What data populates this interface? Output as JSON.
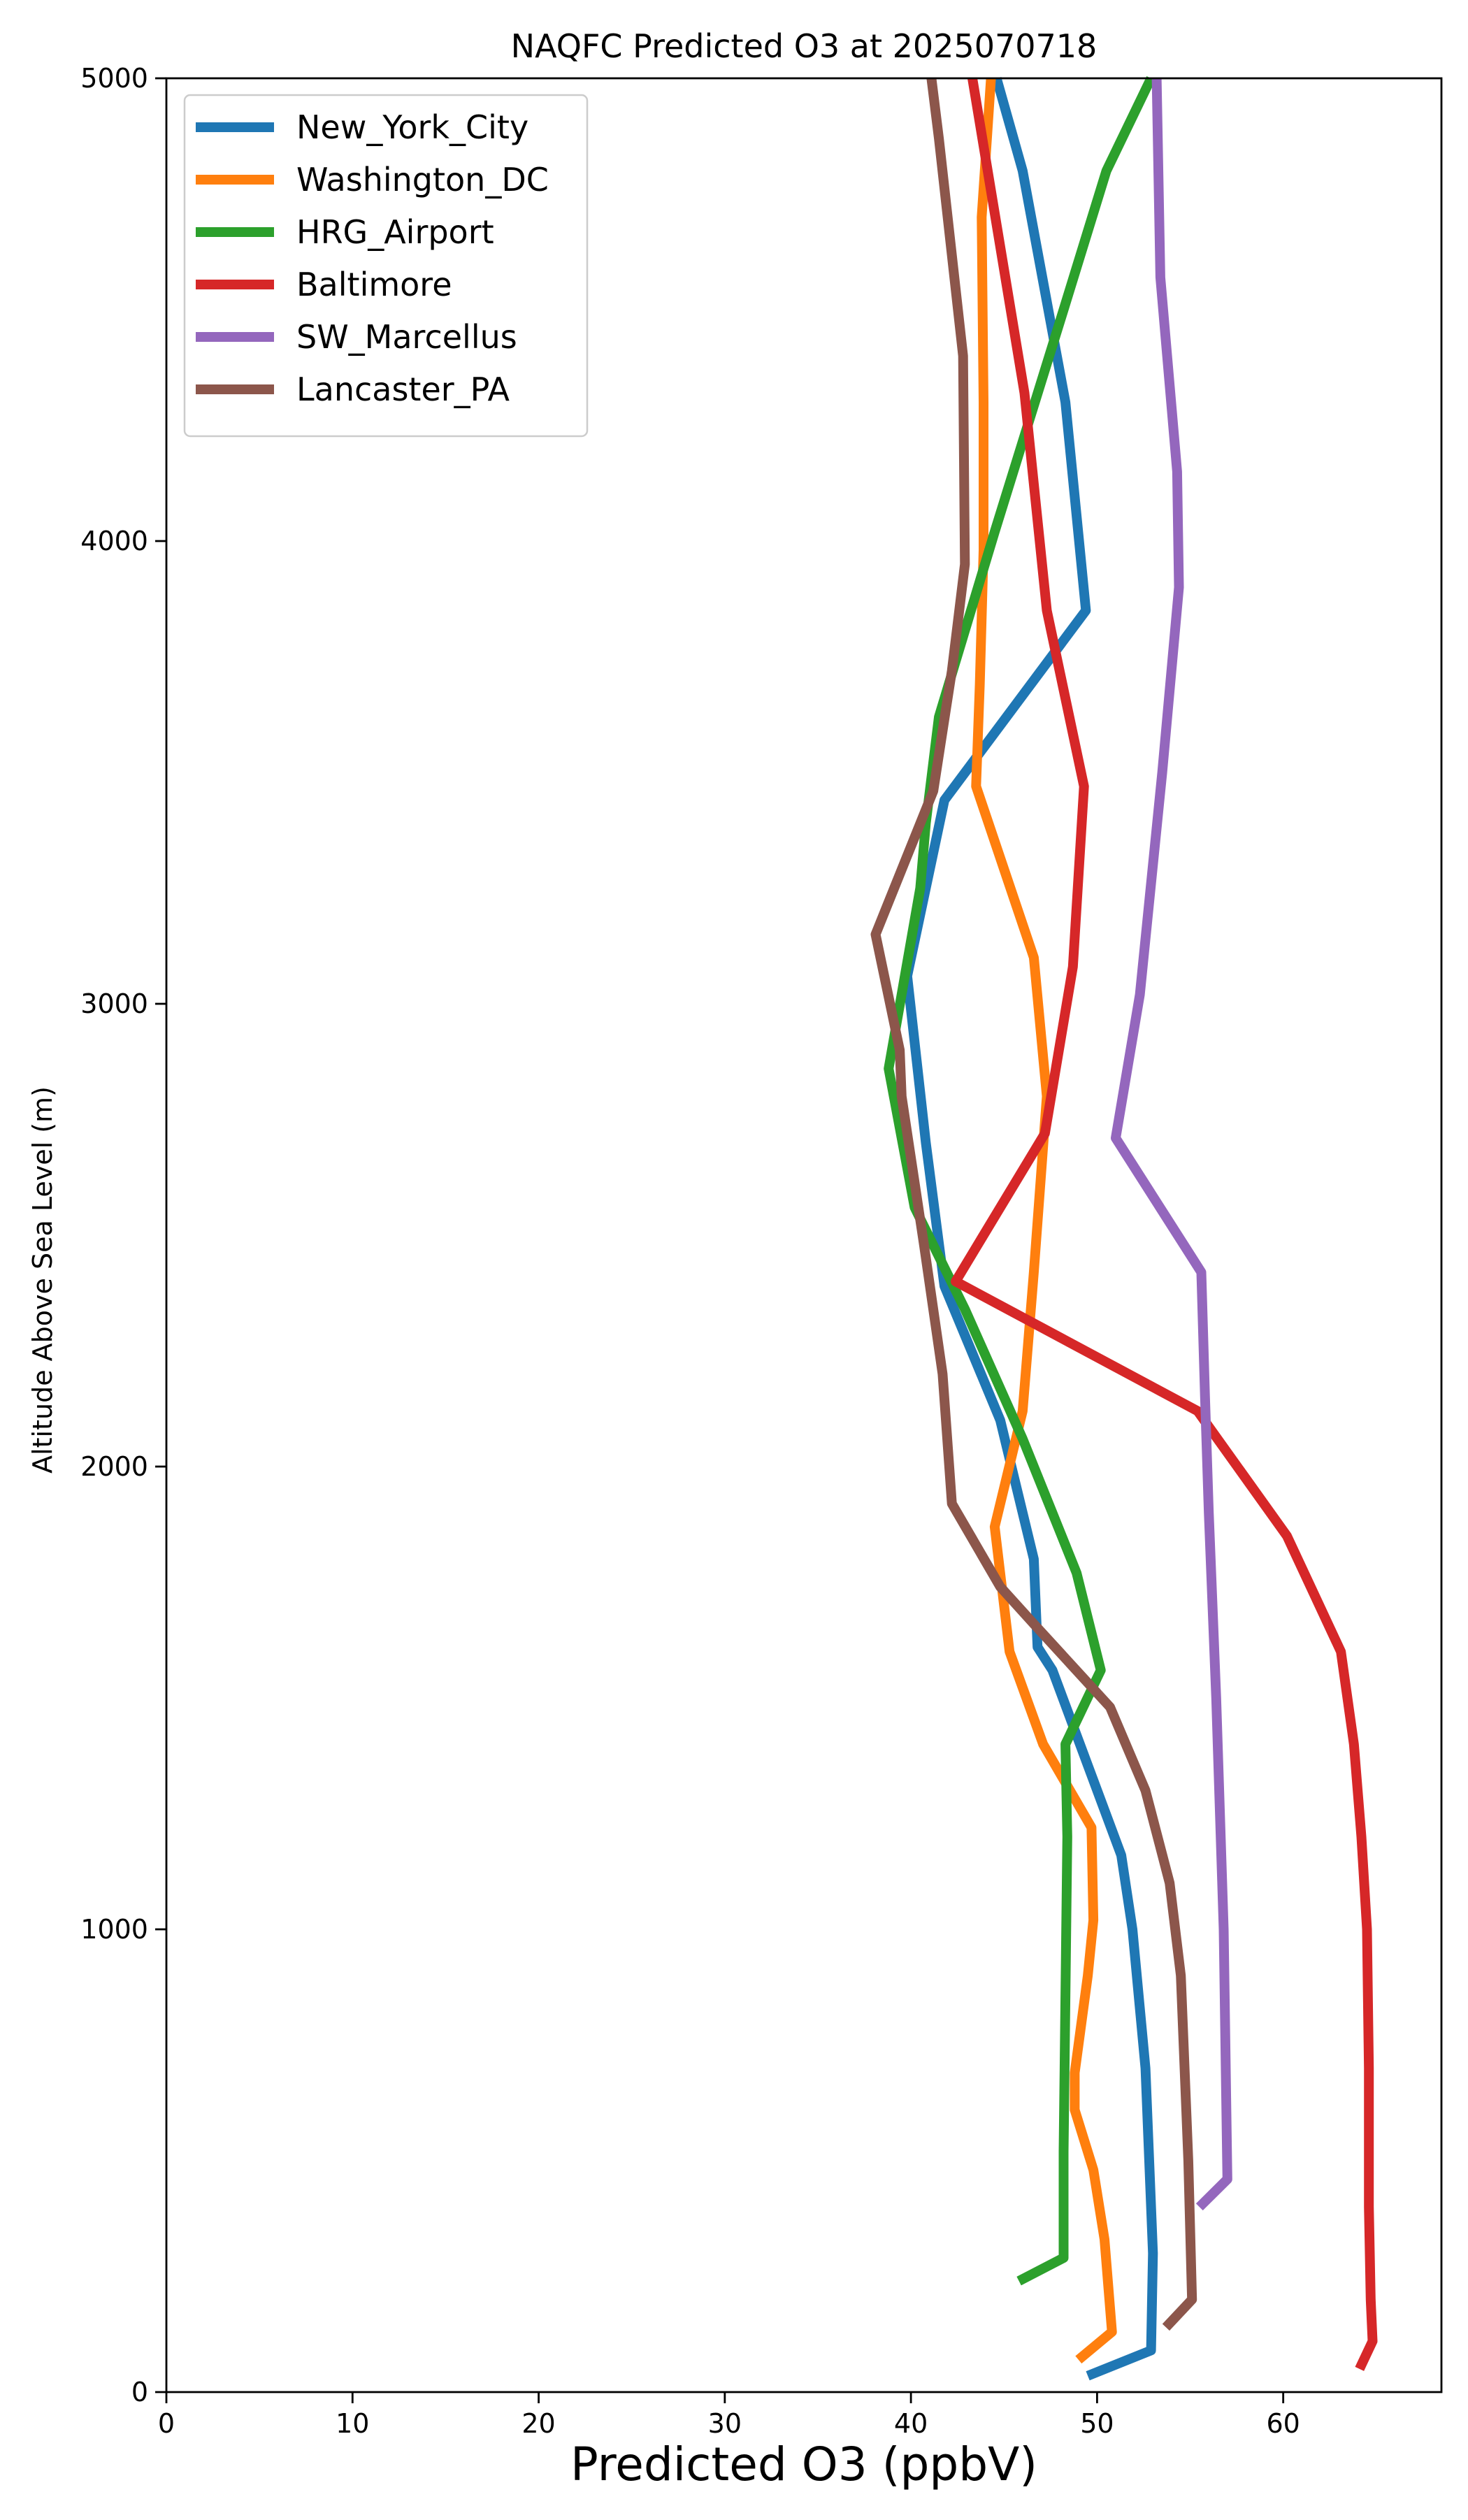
{
  "chart_data": {
    "type": "line",
    "title": "NAQFC Predicted O3 at 2025070718",
    "xlabel": "Predicted O3 (ppbV)",
    "ylabel": "Altitude Above Sea Level (m)",
    "xlim": [
      0,
      68.5
    ],
    "ylim": [
      0,
      5000
    ],
    "xticks": [
      0,
      10,
      20,
      30,
      40,
      50,
      60
    ],
    "yticks": [
      0,
      1000,
      2000,
      3000,
      4000,
      5000
    ],
    "grid": false,
    "legend_position": "upper-left",
    "series": [
      {
        "name": "New_York_City",
        "color": "#1f77b4",
        "points": [
          [
            49.5,
            35
          ],
          [
            52.9,
            90
          ],
          [
            53.0,
            300
          ],
          [
            52.6,
            700
          ],
          [
            51.9,
            1000
          ],
          [
            51.3,
            1160
          ],
          [
            47.6,
            1560
          ],
          [
            46.8,
            1610
          ],
          [
            46.6,
            1800
          ],
          [
            44.8,
            2100
          ],
          [
            41.8,
            2390
          ],
          [
            40.8,
            2700
          ],
          [
            39.8,
            3060
          ],
          [
            41.8,
            3440
          ],
          [
            49.4,
            3850
          ],
          [
            48.3,
            4300
          ],
          [
            46.0,
            4800
          ],
          [
            44.6,
            5000
          ]
        ]
      },
      {
        "name": "Washington_DC",
        "color": "#ff7f0e",
        "points": [
          [
            49.0,
            70
          ],
          [
            50.8,
            130
          ],
          [
            50.4,
            330
          ],
          [
            49.8,
            480
          ],
          [
            48.8,
            610
          ],
          [
            48.8,
            690
          ],
          [
            49.5,
            900
          ],
          [
            49.8,
            1020
          ],
          [
            49.7,
            1220
          ],
          [
            47.1,
            1400
          ],
          [
            45.3,
            1600
          ],
          [
            44.5,
            1870
          ],
          [
            46.0,
            2120
          ],
          [
            46.6,
            2420
          ],
          [
            47.3,
            2800
          ],
          [
            46.6,
            3100
          ],
          [
            43.5,
            3470
          ],
          [
            43.7,
            3690
          ],
          [
            43.9,
            3980
          ],
          [
            43.9,
            4300
          ],
          [
            43.8,
            4700
          ],
          [
            44.3,
            5000
          ]
        ]
      },
      {
        "name": "HRG_Airport",
        "color": "#2ca02c",
        "points": [
          [
            45.8,
            240
          ],
          [
            48.2,
            290
          ],
          [
            48.2,
            520
          ],
          [
            48.4,
            1200
          ],
          [
            48.3,
            1400
          ],
          [
            50.2,
            1560
          ],
          [
            48.9,
            1770
          ],
          [
            46.0,
            2060
          ],
          [
            42.9,
            2340
          ],
          [
            40.2,
            2560
          ],
          [
            38.8,
            2860
          ],
          [
            40.5,
            3250
          ],
          [
            40.8,
            3390
          ],
          [
            41.5,
            3620
          ],
          [
            44.5,
            4020
          ],
          [
            48.2,
            4500
          ],
          [
            50.5,
            4800
          ],
          [
            52.9,
            5000
          ]
        ]
      },
      {
        "name": "Baltimore",
        "color": "#d62728",
        "points": [
          [
            64.1,
            50
          ],
          [
            64.8,
            110
          ],
          [
            64.7,
            200
          ],
          [
            64.6,
            400
          ],
          [
            64.6,
            700
          ],
          [
            64.5,
            1000
          ],
          [
            64.2,
            1200
          ],
          [
            63.8,
            1400
          ],
          [
            63.1,
            1600
          ],
          [
            60.2,
            1850
          ],
          [
            55.4,
            2120
          ],
          [
            42.4,
            2400
          ],
          [
            47.2,
            2720
          ],
          [
            48.7,
            3080
          ],
          [
            49.3,
            3470
          ],
          [
            47.3,
            3850
          ],
          [
            46.1,
            4320
          ],
          [
            43.3,
            5000
          ]
        ]
      },
      {
        "name": "SW_Marcellus",
        "color": "#9467bd",
        "points": [
          [
            55.5,
            400
          ],
          [
            57.0,
            460
          ],
          [
            56.8,
            1000
          ],
          [
            56.4,
            1500
          ],
          [
            56.0,
            1900
          ],
          [
            55.8,
            2150
          ],
          [
            55.6,
            2420
          ],
          [
            51.0,
            2710
          ],
          [
            52.3,
            3020
          ],
          [
            53.5,
            3500
          ],
          [
            54.4,
            3900
          ],
          [
            54.3,
            4150
          ],
          [
            53.4,
            4570
          ],
          [
            53.2,
            5000
          ]
        ]
      },
      {
        "name": "Lancaster_PA",
        "color": "#8c564b",
        "points": [
          [
            53.7,
            140
          ],
          [
            55.1,
            200
          ],
          [
            54.9,
            500
          ],
          [
            54.5,
            900
          ],
          [
            53.9,
            1100
          ],
          [
            52.6,
            1300
          ],
          [
            50.7,
            1480
          ],
          [
            46.6,
            1660
          ],
          [
            44.8,
            1740
          ],
          [
            42.2,
            1920
          ],
          [
            41.7,
            2200
          ],
          [
            40.7,
            2480
          ],
          [
            39.5,
            2800
          ],
          [
            39.4,
            2900
          ],
          [
            38.1,
            3150
          ],
          [
            41.2,
            3460
          ],
          [
            42.2,
            3720
          ],
          [
            42.9,
            3950
          ],
          [
            42.8,
            4400
          ],
          [
            41.5,
            4870
          ],
          [
            41.1,
            5000
          ]
        ]
      }
    ]
  }
}
